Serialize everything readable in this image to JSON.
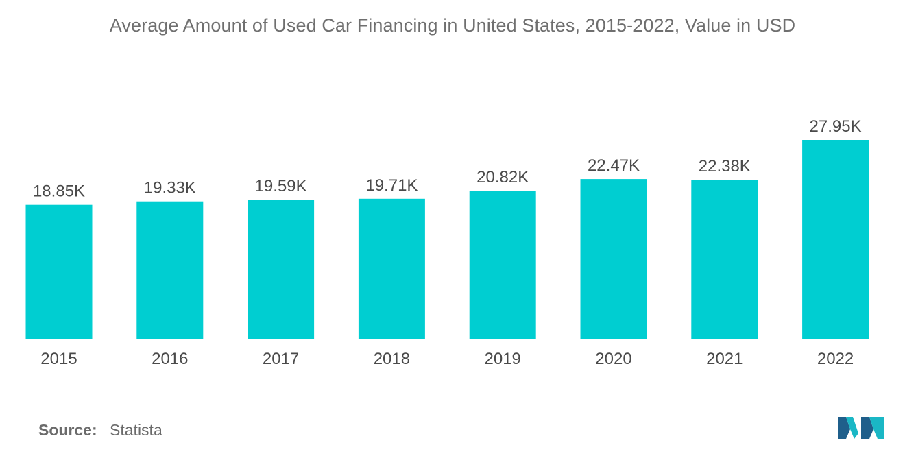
{
  "title": "Average Amount of Used Car Financing in United States, 2015-2022, Value in USD",
  "source": {
    "label": "Source:",
    "value": "Statista"
  },
  "logo": {
    "icon": "mordor-intelligence-logo-icon",
    "colors": [
      "#1f5f8b",
      "#1ab7c5"
    ]
  },
  "colors": {
    "bar": "#00ced1",
    "text": "#4a4a4a",
    "title": "#6f6f6f"
  },
  "chart_data": {
    "type": "bar",
    "title": "Average Amount of Used Car Financing in United States, 2015-2022, Value in USD",
    "xlabel": "",
    "ylabel": "",
    "categories": [
      "2015",
      "2016",
      "2017",
      "2018",
      "2019",
      "2020",
      "2021",
      "2022"
    ],
    "values": [
      18.85,
      19.33,
      19.59,
      19.71,
      20.82,
      22.47,
      22.38,
      27.95
    ],
    "value_labels": [
      "18.85K",
      "19.33K",
      "19.59K",
      "19.71K",
      "20.82K",
      "22.47K",
      "22.38K",
      "27.95K"
    ],
    "unit": "K USD",
    "ylim": [
      0,
      27.95
    ],
    "grid": false,
    "legend": "none"
  }
}
